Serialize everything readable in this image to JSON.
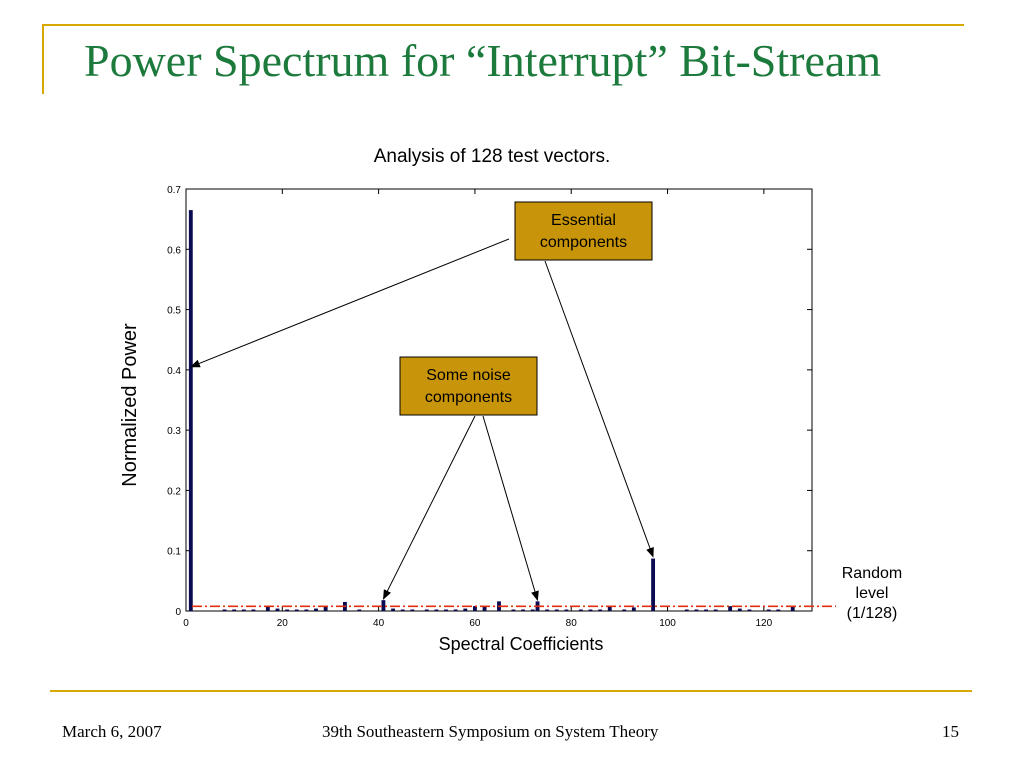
{
  "slide": {
    "title": "Power Spectrum for “Interrupt” Bit-Stream",
    "footer_date": "March 6, 2007",
    "footer_conference": "39th Southeastern Symposium on System Theory",
    "page_number": "15",
    "accent_color": "#d8a800",
    "title_color": "#1c7a3c"
  },
  "chart_data": {
    "type": "bar",
    "title": "Analysis of 128 test vectors.",
    "xlabel": "Spectral Coefficients",
    "ylabel": "Normalized Power",
    "xlim": [
      0,
      130
    ],
    "ylim": [
      0,
      0.7
    ],
    "xticks": [
      0,
      20,
      40,
      60,
      80,
      100,
      120
    ],
    "yticks": [
      0,
      0.1,
      0.2,
      0.3,
      0.4,
      0.5,
      0.6,
      0.7
    ],
    "ytick_labels": [
      "0",
      "0.1",
      "0.2",
      "0.3",
      "0.4",
      "0.5",
      "0.6",
      "0.7"
    ],
    "bar_color": "#0a0a50",
    "random_level": 0.0078125,
    "random_level_label": [
      "Random",
      "level",
      "(1/128)"
    ],
    "random_level_color": "#e03010",
    "x": [
      1,
      8,
      10,
      12,
      14,
      17,
      19,
      21,
      23,
      25,
      27,
      29,
      33,
      36,
      41,
      43,
      45,
      47,
      50,
      52,
      54,
      56,
      58,
      60,
      62,
      65,
      68,
      70,
      72,
      73,
      75,
      77,
      79,
      82,
      84,
      86,
      88,
      91,
      93,
      97,
      104,
      106,
      108,
      110,
      113,
      115,
      117,
      121,
      123,
      126
    ],
    "values": [
      0.665,
      0.002,
      0.002,
      0.002,
      0.002,
      0.008,
      0.004,
      0.002,
      0.002,
      0.002,
      0.004,
      0.008,
      0.015,
      0.002,
      0.018,
      0.004,
      0.002,
      0.002,
      0.002,
      0.002,
      0.002,
      0.002,
      0.004,
      0.008,
      0.008,
      0.016,
      0.002,
      0.002,
      0.002,
      0.016,
      0.002,
      0.002,
      0.002,
      0.002,
      0.002,
      0.002,
      0.008,
      0.002,
      0.006,
      0.087,
      0.002,
      0.002,
      0.002,
      0.002,
      0.008,
      0.004,
      0.002,
      0.002,
      0.002,
      0.008
    ],
    "annotations": [
      {
        "lines": [
          "Essential",
          "components"
        ],
        "targets": [
          [
            1,
            0.405
          ],
          [
            97,
            0.09
          ]
        ]
      },
      {
        "lines": [
          "Some noise",
          "components"
        ],
        "targets": [
          [
            41,
            0.02
          ],
          [
            73,
            0.018
          ]
        ]
      }
    ],
    "annotation_fill": "#c8940a"
  }
}
